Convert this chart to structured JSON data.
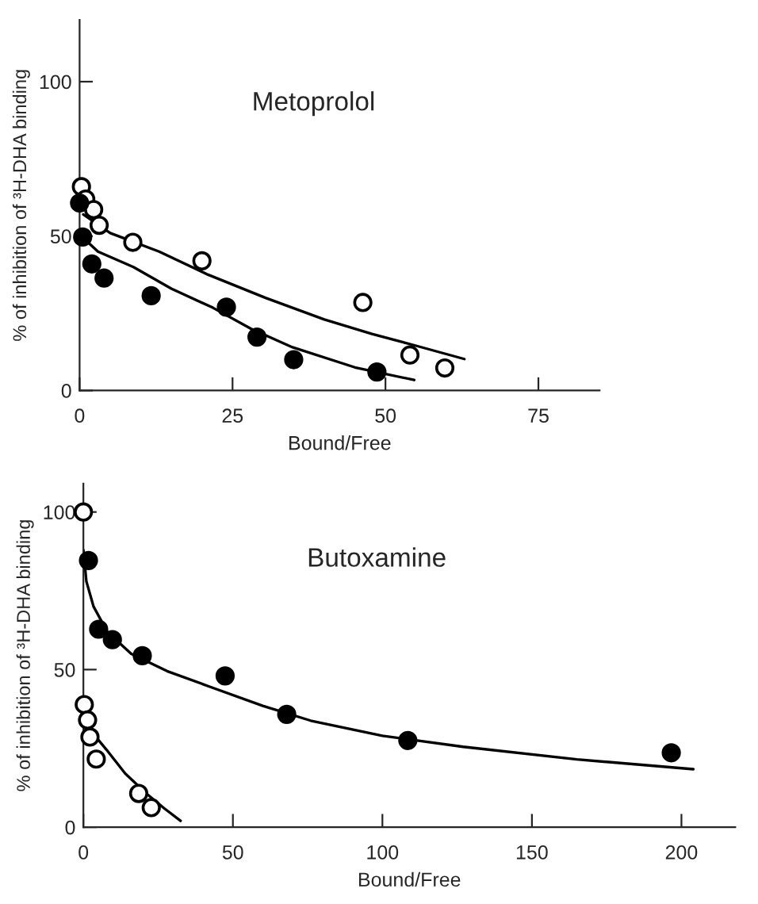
{
  "chart_data": [
    {
      "type": "scatter",
      "title": "Metoprolol",
      "xlabel": "Bound/Free",
      "ylabel": "% of inhibition of ³H-DHA binding",
      "xlim": [
        0,
        85
      ],
      "ylim": [
        0,
        120
      ],
      "xticks": [
        0,
        25,
        50,
        75
      ],
      "yticks": [
        0,
        50,
        100
      ],
      "grid": false,
      "series": [
        {
          "marker": "circle",
          "color": "#ffffff",
          "x": [
            0.3,
            1,
            2.3,
            3.2,
            8.7,
            20,
            46.3,
            54,
            59.7
          ],
          "values": [
            66,
            62,
            58.6,
            53.5,
            48,
            42,
            28.5,
            11.5,
            7.3
          ]
        },
        {
          "marker": "circle",
          "color": "#000000",
          "x": [
            0,
            0.5,
            2,
            4,
            11.7,
            24,
            29,
            35,
            48.6
          ],
          "values": [
            60.7,
            49.7,
            41,
            36.4,
            30.7,
            27,
            17.3,
            10,
            6
          ]
        },
        {
          "type": "line",
          "marker": "none",
          "line_style": "solid",
          "color": "#000000",
          "x": [
            0.6,
            5,
            13,
            21,
            30.4,
            40,
            47.8,
            55,
            62.9
          ],
          "values": [
            57,
            51,
            45,
            37.5,
            30,
            23,
            18.3,
            14.5,
            10.2
          ]
        },
        {
          "type": "line",
          "marker": "none",
          "line_style": "solid",
          "color": "#000000",
          "x": [
            0,
            3,
            8.8,
            15,
            21.8,
            28,
            34.8,
            45,
            54.7
          ],
          "values": [
            50.5,
            45,
            40,
            33,
            26.8,
            20,
            14,
            7.5,
            3.4
          ]
        }
      ]
    },
    {
      "type": "scatter",
      "title": "Butoxamine",
      "xlabel": "Bound/Free",
      "ylabel": "% of inhibition of ³H-DHA binding",
      "xlim": [
        0,
        218
      ],
      "ylim": [
        0,
        109
      ],
      "xticks": [
        0,
        50,
        100,
        150,
        200
      ],
      "yticks": [
        0,
        50,
        100
      ],
      "grid": false,
      "series": [
        {
          "marker": "circle",
          "color": "#000000",
          "x": [
            1.7,
            5.1,
            9.7,
            19.7,
            47.4,
            68,
            108.5,
            196.6
          ],
          "values": [
            84.6,
            62.8,
            59.5,
            54.4,
            48,
            35.8,
            27.5,
            23.6
          ]
        },
        {
          "marker": "circle",
          "color": "#ffffff",
          "x": [
            0,
            0.3,
            1.4,
            2.2,
            4.3,
            18.5,
            22.7
          ],
          "values": [
            100,
            38.9,
            34,
            28.6,
            21.6,
            10.7,
            6.2
          ]
        },
        {
          "type": "line",
          "marker": "none",
          "line_style": "solid",
          "color": "#000000",
          "x": [
            0,
            1,
            3.4,
            8,
            16,
            28,
            41.9,
            60,
            76,
            100,
            127,
            165,
            204
          ],
          "values": [
            88,
            78,
            70,
            62,
            55,
            49.5,
            44.7,
            38.5,
            33.8,
            29,
            25.5,
            21.5,
            18.4
          ]
        },
        {
          "type": "line",
          "marker": "none",
          "line_style": "solid",
          "color": "#000000",
          "x": [
            0.3,
            3,
            7.7,
            14,
            21.4,
            27,
            32.5
          ],
          "values": [
            38,
            30,
            24.6,
            17,
            10.4,
            6,
            2
          ]
        }
      ]
    }
  ]
}
